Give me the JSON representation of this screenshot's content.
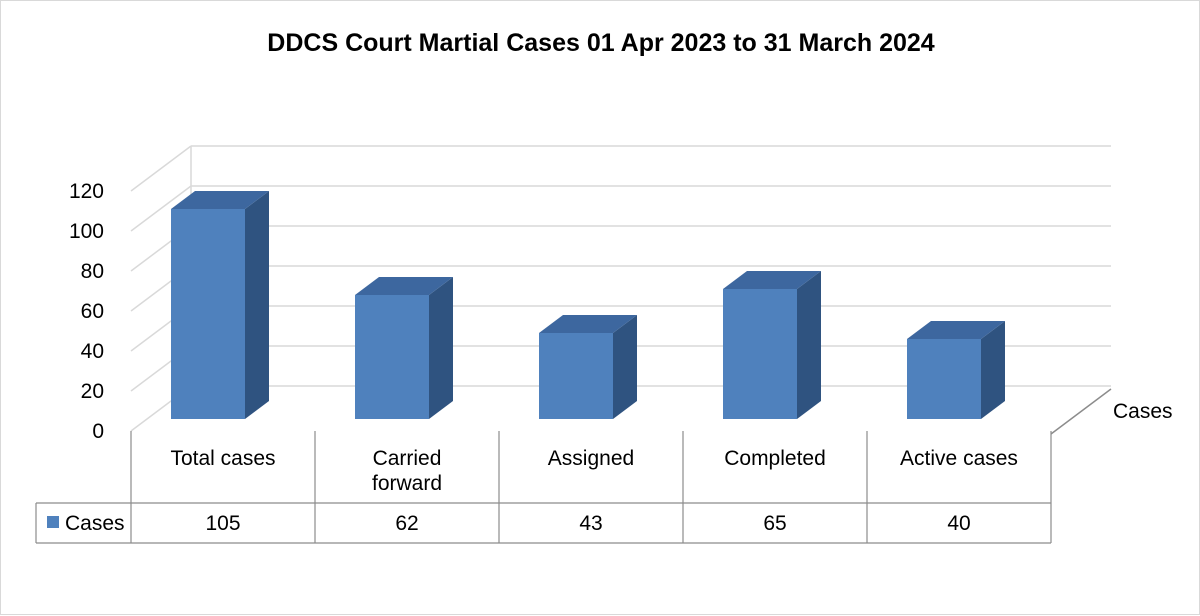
{
  "chart_data": {
    "type": "bar",
    "title": "DDCS Court Martial Cases 01 Apr 2023 to 31 March 2024",
    "categories": [
      "Total cases",
      "Carried forward",
      "Assigned",
      "Completed",
      "Active cases"
    ],
    "category_lines": [
      [
        "Total cases"
      ],
      [
        "Carried",
        "forward"
      ],
      [
        "Assigned"
      ],
      [
        "Completed"
      ],
      [
        "Active cases"
      ]
    ],
    "series": [
      {
        "name": "Cases",
        "values": [
          105,
          62,
          43,
          65,
          40
        ],
        "color": "#4f81bd"
      }
    ],
    "depth_axis_label": "Cases",
    "y_ticks": [
      "0",
      "20",
      "40",
      "60",
      "80",
      "100",
      "120"
    ],
    "ylim": [
      0,
      120
    ],
    "grid": true,
    "legend": "data-table",
    "data_table": true,
    "colors": {
      "front": "#4f81bd",
      "side": "#2f5380",
      "top": "#3d679f",
      "grid": "#d9d9d9",
      "table_border": "#8c8c8c"
    }
  }
}
